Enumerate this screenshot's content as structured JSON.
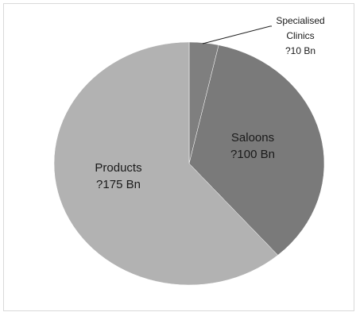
{
  "chart_data": {
    "type": "pie",
    "title": "",
    "slices": [
      {
        "label": "Specialised Clinics",
        "value_text": "?10 Bn",
        "value": 10,
        "color": "#7f7f7f"
      },
      {
        "label": "Saloons",
        "value_text": "?100 Bn",
        "value": 100,
        "color": "#7a7a7a"
      },
      {
        "label": "Products",
        "value_text": "?175 Bn",
        "value": 175,
        "color": "#b2b2b2"
      }
    ],
    "legend": "none"
  }
}
